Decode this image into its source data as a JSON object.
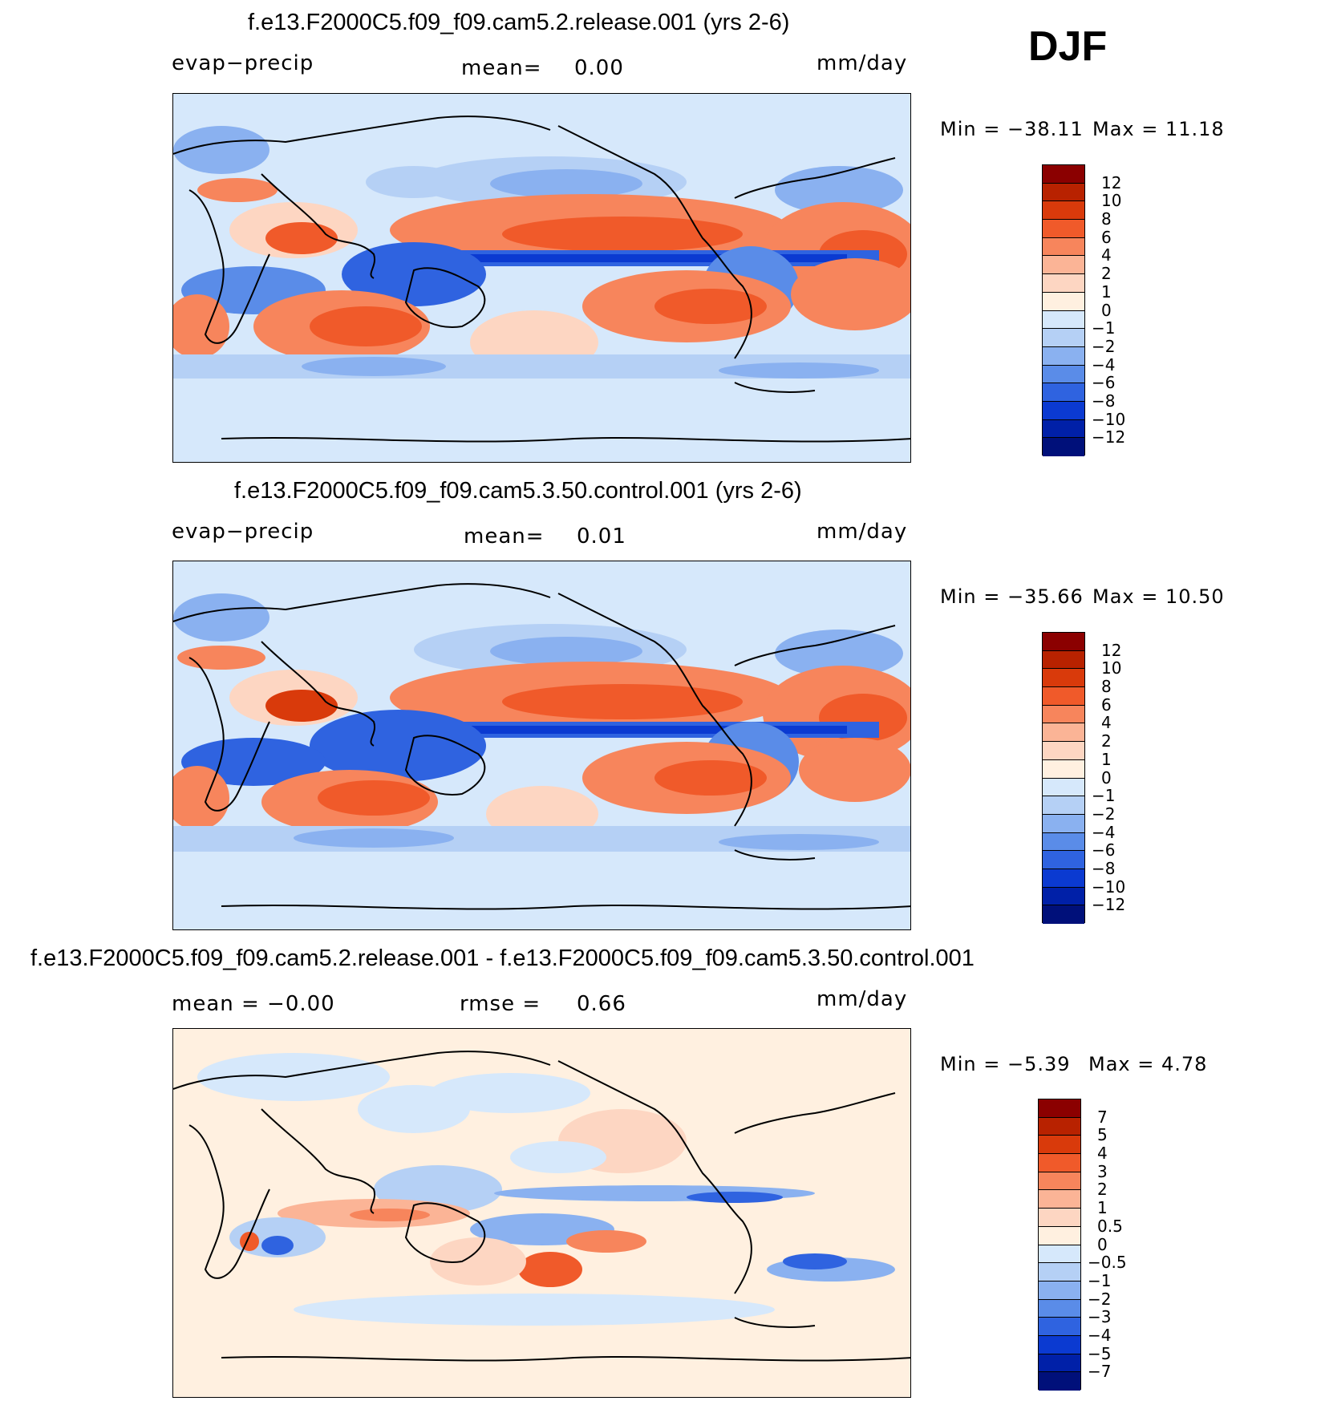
{
  "season": "DJF",
  "panels": [
    {
      "title": "f.e13.F2000C5.f09_f09.cam5.2.release.001 (yrs 2-6)",
      "left_label": "evap−precip",
      "mid_label": "mean=",
      "mid_value": "0.00",
      "units": "mm/day",
      "min_label": "Min  =  −38.11",
      "max_label": "Max  =    11.18",
      "colorbar": {
        "levels": [
          "12",
          "10",
          "8",
          "6",
          "4",
          "2",
          "1",
          "0",
          "−1",
          "−2",
          "−4",
          "−6",
          "−8",
          "−10",
          "−12"
        ],
        "colors": [
          "#8b0000",
          "#b82200",
          "#d93a0b",
          "#f05a2a",
          "#f7855c",
          "#fbb496",
          "#fdd6c2",
          "#fff0e0",
          "#d6e8fb",
          "#b5d0f5",
          "#8ab1f0",
          "#5a8ce8",
          "#2f63e0",
          "#0b3ad1",
          "#0020a8",
          "#00107a"
        ]
      }
    },
    {
      "title": "f.e13.F2000C5.f09_f09.cam5.3.50.control.001 (yrs 2-6)",
      "left_label": "evap−precip",
      "mid_label": "mean=",
      "mid_value": "0.01",
      "units": "mm/day",
      "min_label": "Min  =  −35.66",
      "max_label": "Max  =    10.50",
      "colorbar": {
        "levels": [
          "12",
          "10",
          "8",
          "6",
          "4",
          "2",
          "1",
          "0",
          "−1",
          "−2",
          "−4",
          "−6",
          "−8",
          "−10",
          "−12"
        ],
        "colors": [
          "#8b0000",
          "#b82200",
          "#d93a0b",
          "#f05a2a",
          "#f7855c",
          "#fbb496",
          "#fdd6c2",
          "#fff0e0",
          "#d6e8fb",
          "#b5d0f5",
          "#8ab1f0",
          "#5a8ce8",
          "#2f63e0",
          "#0b3ad1",
          "#0020a8",
          "#00107a"
        ]
      }
    },
    {
      "title": "f.e13.F2000C5.f09_f09.cam5.2.release.001 - f.e13.F2000C5.f09_f09.cam5.3.50.control.001",
      "left_label": "mean  =    −0.00",
      "mid_label": "rmse  =",
      "mid_value": "0.66",
      "units": "mm/day",
      "min_label": "Min  =     −5.39",
      "max_label": "Max  =     4.78",
      "colorbar": {
        "levels": [
          "7",
          "5",
          "4",
          "3",
          "2",
          "1",
          "0.5",
          "0",
          "−0.5",
          "−1",
          "−2",
          "−3",
          "−4",
          "−5",
          "−7"
        ],
        "colors": [
          "#8b0000",
          "#b82200",
          "#d93a0b",
          "#f05a2a",
          "#f7855c",
          "#fbb496",
          "#fdd6c2",
          "#fff0e0",
          "#d6e8fb",
          "#b5d0f5",
          "#8ab1f0",
          "#5a8ce8",
          "#2f63e0",
          "#0b3ad1",
          "#0020a8",
          "#00107a"
        ]
      }
    }
  ]
}
